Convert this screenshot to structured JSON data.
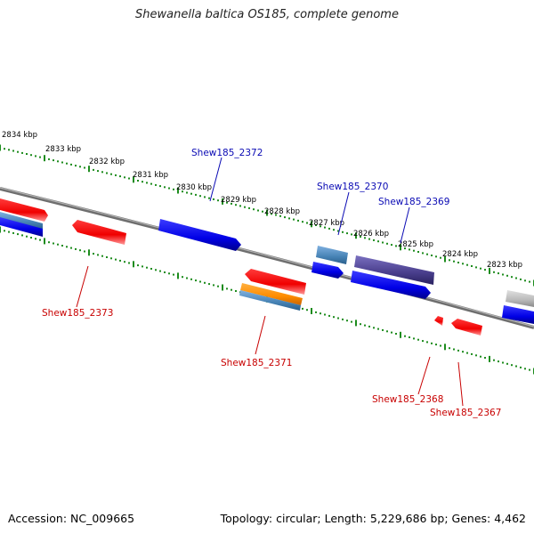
{
  "title": "Shewanella baltica OS185, complete genome",
  "footer": {
    "accession": "Accession: NC_009665",
    "summary": "Topology: circular; Length: 5,229,686 bp; Genes: 4,462"
  },
  "colors": {
    "forward_label": "#0a0ab4",
    "reverse_label": "#c80000",
    "tick": "#1e8c1e",
    "backbone": "#8a8a8a"
  },
  "tick_labels": [
    "2834 kbp",
    "2833 kbp",
    "2832 kbp",
    "2831 kbp",
    "2830 kbp",
    "2829 kbp",
    "2828 kbp",
    "2827 kbp",
    "2826 kbp",
    "2825 kbp",
    "2824 kbp",
    "2823 kbp"
  ],
  "genes": {
    "shew2372": "Shew185_2372",
    "shew2370": "Shew185_2370",
    "shew2369": "Shew185_2369",
    "shew2373": "Shew185_2373",
    "shew2371": "Shew185_2371",
    "shew2368": "Shew185_2368",
    "shew2367": "Shew185_2367"
  }
}
